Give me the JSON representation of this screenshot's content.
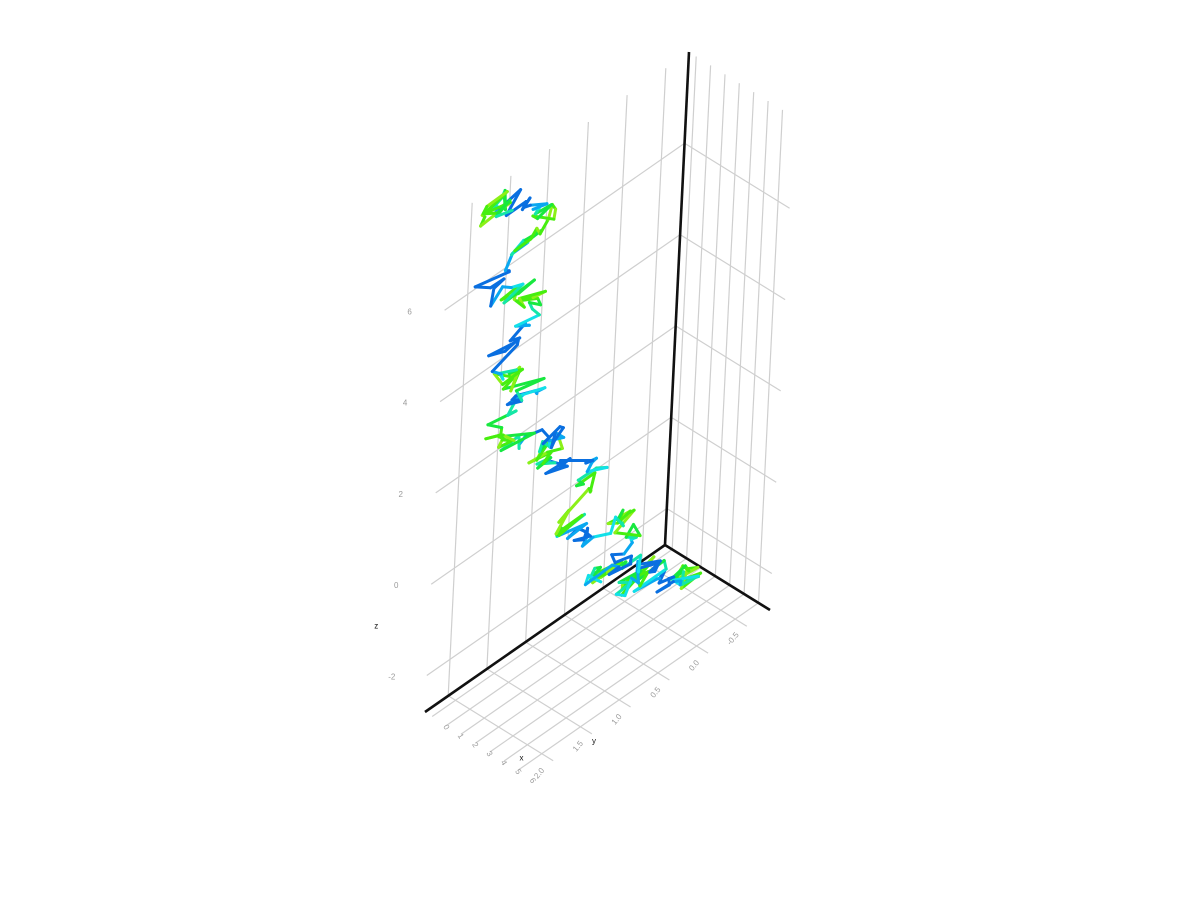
{
  "chart_data": {
    "type": "line3d",
    "title": "",
    "axes": {
      "x": {
        "label": "x",
        "ticks": [
          "0",
          "1",
          "2",
          "3",
          "4",
          "5",
          "6"
        ],
        "range": [
          -0.5,
          6.8
        ]
      },
      "y": {
        "label": "y",
        "ticks": [
          "-0.5",
          "0.0",
          "0.5",
          "1.0",
          "1.5",
          "2.0"
        ],
        "range": [
          -0.8,
          2.3
        ]
      },
      "z": {
        "label": "z",
        "ticks": [
          "-2",
          "0",
          "2",
          "4",
          "6"
        ],
        "range": [
          -2.8,
          8.0
        ]
      }
    },
    "grid": true,
    "legend": "none",
    "colormap": [
      "#0a6fe0",
      "#0aa8f0",
      "#12e0e8",
      "#14e6a8",
      "#18e840",
      "#46ee10",
      "#8cf018"
    ],
    "series": [
      {
        "points": [
          [
            5.9,
            0.0,
            -1.3
          ],
          [
            5.5,
            0.2,
            -1.1
          ],
          [
            5.2,
            0.1,
            -1.5
          ],
          [
            4.8,
            0.3,
            -1.2
          ],
          [
            4.4,
            0.5,
            -0.9
          ],
          [
            4.9,
            0.7,
            -0.8
          ],
          [
            5.3,
            0.4,
            -0.6
          ],
          [
            4.7,
            0.9,
            -0.3
          ],
          [
            4.2,
            1.1,
            -0.4
          ],
          [
            3.9,
            0.8,
            -0.7
          ],
          [
            4.1,
            0.5,
            -0.2
          ],
          [
            3.6,
            0.6,
            0.3
          ],
          [
            3.2,
            0.9,
            0.1
          ],
          [
            3.5,
            1.3,
            0.6
          ],
          [
            3.0,
            1.2,
            1.0
          ],
          [
            2.7,
            0.8,
            1.4
          ],
          [
            2.4,
            1.1,
            1.9
          ],
          [
            2.6,
            1.5,
            2.3
          ],
          [
            2.2,
            1.4,
            2.6
          ],
          [
            1.8,
            1.2,
            2.3
          ],
          [
            1.4,
            1.6,
            2.8
          ],
          [
            1.6,
            1.9,
            3.2
          ],
          [
            1.2,
            1.7,
            3.6
          ],
          [
            0.9,
            1.3,
            3.3
          ],
          [
            0.6,
            1.5,
            3.9
          ],
          [
            0.9,
            1.8,
            4.3
          ],
          [
            0.5,
            1.6,
            4.7
          ],
          [
            0.2,
            1.2,
            5.1
          ],
          [
            0.4,
            1.5,
            5.6
          ],
          [
            0.0,
            1.8,
            6.0
          ],
          [
            -0.2,
            1.4,
            6.4
          ],
          [
            0.1,
            1.0,
            6.8
          ],
          [
            -0.1,
            1.3,
            7.2
          ],
          [
            -0.3,
            1.7,
            7.6
          ],
          [
            0.0,
            1.9,
            7.9
          ],
          [
            0.2,
            1.6,
            7.5
          ]
        ]
      }
    ]
  }
}
